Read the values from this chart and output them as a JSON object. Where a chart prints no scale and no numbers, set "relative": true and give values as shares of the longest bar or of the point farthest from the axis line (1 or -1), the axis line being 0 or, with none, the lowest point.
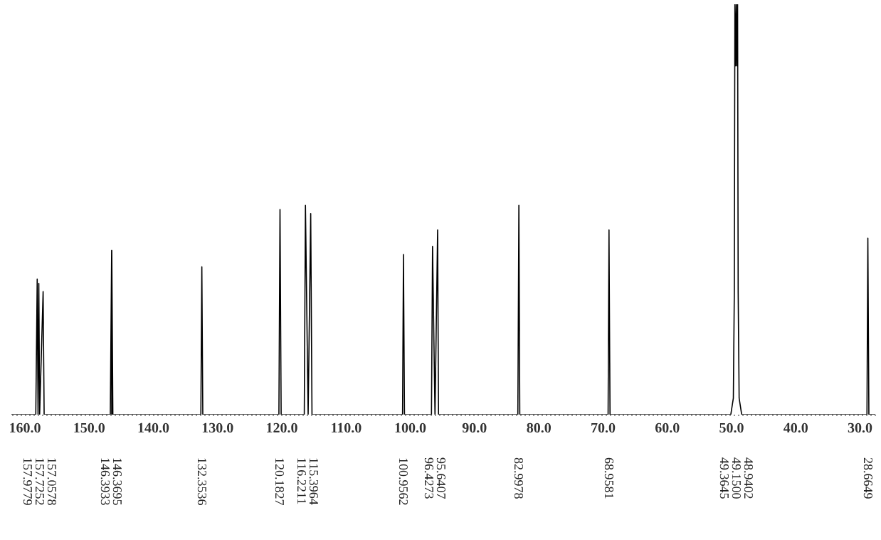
{
  "chart_data": {
    "type": "line",
    "relative": true,
    "color": "#000000",
    "x": [
      162,
      158.2,
      157.98,
      157.85,
      157.73,
      157.6,
      157.06,
      156.9,
      146.6,
      146.39,
      146.38,
      146.37,
      146.2,
      132.5,
      132.35,
      132.2,
      120.35,
      120.18,
      120.0,
      116.4,
      116.22,
      115.8,
      115.4,
      115.2,
      101.1,
      100.96,
      100.8,
      96.6,
      96.43,
      96.05,
      95.64,
      95.5,
      83.15,
      82.99,
      82.85,
      69.1,
      68.96,
      68.8,
      50.0,
      49.6,
      49.45,
      49.36,
      49.25,
      49.15,
      49.05,
      48.94,
      48.85,
      48.7,
      48.3,
      28.8,
      28.66,
      28.5,
      27.5
    ],
    "values": [
      0,
      0,
      0.33,
      0,
      0.32,
      0,
      0.3,
      0,
      0,
      0.4,
      0,
      0.4,
      0,
      0,
      0.36,
      0,
      0,
      0.5,
      0,
      0,
      0.51,
      0,
      0.49,
      0,
      0,
      0.39,
      0,
      0,
      0.41,
      0,
      0.45,
      0,
      0,
      0.51,
      0,
      0,
      0.45,
      0,
      0,
      0.04,
      0.3,
      1,
      0.85,
      1,
      0.85,
      1,
      0.3,
      0.04,
      0,
      0,
      0.43,
      0,
      0
    ],
    "xlim": [
      162,
      27.5
    ],
    "xticks": [
      {
        "value": 160,
        "label": "160.0"
      },
      {
        "value": 150,
        "label": "150.0"
      },
      {
        "value": 140,
        "label": "140.0"
      },
      {
        "value": 130,
        "label": "130.0"
      },
      {
        "value": 120,
        "label": "120.0"
      },
      {
        "value": 110,
        "label": "110.0"
      },
      {
        "value": 100,
        "label": "100.0"
      },
      {
        "value": 90,
        "label": "90.0"
      },
      {
        "value": 80,
        "label": "80.0"
      },
      {
        "value": 70,
        "label": "70.0"
      },
      {
        "value": 60,
        "label": "60.0"
      },
      {
        "value": 50,
        "label": "50.0"
      },
      {
        "value": 40,
        "label": "40.0"
      },
      {
        "value": 30,
        "label": "30.0"
      }
    ],
    "annotations": [
      "157.9779",
      "157.7252",
      "157.0578",
      "146.3933",
      "146.3695",
      "132.3536",
      "120.1827",
      "116.2211",
      "115.3964",
      "100.9562",
      "96.4273",
      "95.6407",
      "82.9978",
      "68.9581",
      "49.3645",
      "49.1500",
      "48.9402",
      "28.6649"
    ]
  }
}
